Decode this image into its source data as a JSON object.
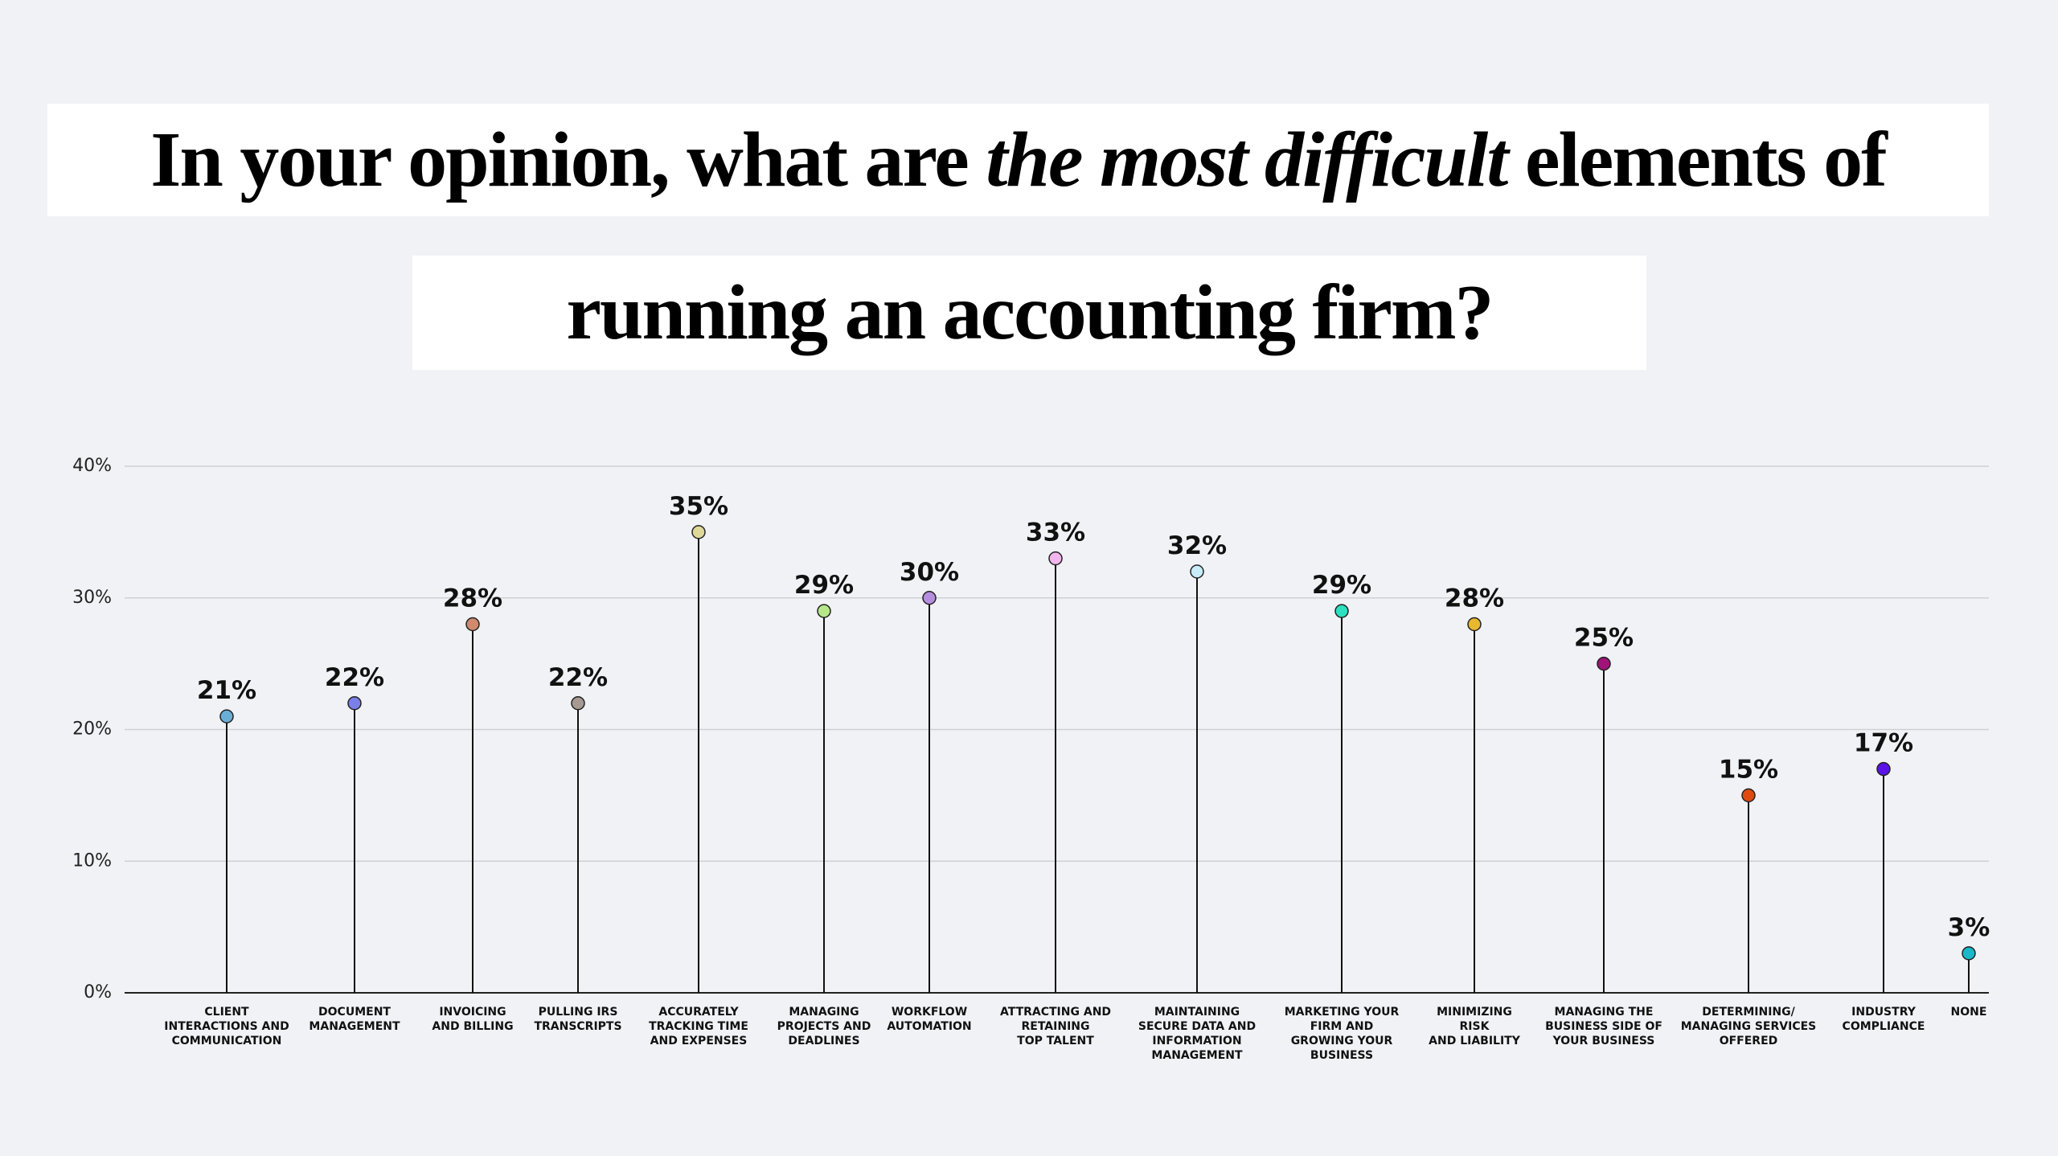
{
  "title": {
    "line1": [
      "In your opinion, what are ",
      "the most difficult",
      " elements of"
    ],
    "line2": "running an accounting firm?"
  },
  "chart_data": {
    "type": "lollipop",
    "categories": [
      "CLIENT\nINTERACTIONS AND\nCOMMUNICATION",
      "DOCUMENT\nMANAGEMENT",
      "INVOICING\nAND BILLING",
      "PULLING IRS\nTRANSCRIPTS",
      "ACCURATELY\nTRACKING TIME\nAND EXPENSES",
      "MANAGING\nPROJECTS AND\nDEADLINES",
      "WORKFLOW\nAUTOMATION",
      "ATTRACTING AND\nRETAINING\nTOP TALENT",
      "MAINTAINING\nSECURE DATA AND\nINFORMATION\nMANAGEMENT",
      "MARKETING YOUR\nFIRM AND\nGROWING YOUR\nBUSINESS",
      "MINIMIZING\nRISK\nAND LIABILITY",
      "MANAGING THE\nBUSINESS SIDE OF\nYOUR BUSINESS",
      "DETERMINING/\nMANAGING SERVICES\nOFFERED",
      "INDUSTRY\nCOMPLIANCE",
      "NONE"
    ],
    "values": [
      21,
      22,
      28,
      22,
      35,
      29,
      30,
      33,
      32,
      29,
      28,
      25,
      15,
      17,
      3
    ],
    "value_labels": [
      "21%",
      "22%",
      "28%",
      "22%",
      "35%",
      "29%",
      "30%",
      "33%",
      "32%",
      "29%",
      "28%",
      "25%",
      "15%",
      "17%",
      "3%"
    ],
    "colors": [
      "#6aaed6",
      "#7b7fe8",
      "#d08a6e",
      "#a89a92",
      "#e0d89a",
      "#b6e88a",
      "#b58ee0",
      "#f2b6ee",
      "#c8ecf8",
      "#2ee0c0",
      "#e8b830",
      "#a0147a",
      "#e04a10",
      "#5a14e8",
      "#1ab8c8"
    ],
    "ylim": [
      0,
      40
    ],
    "yticks": [
      {
        "value": 0,
        "label": "0%"
      },
      {
        "value": 10,
        "label": "10%"
      },
      {
        "value": 20,
        "label": "20%"
      },
      {
        "value": 30,
        "label": "30%"
      },
      {
        "value": 40,
        "label": "40%"
      }
    ],
    "grid": true
  }
}
